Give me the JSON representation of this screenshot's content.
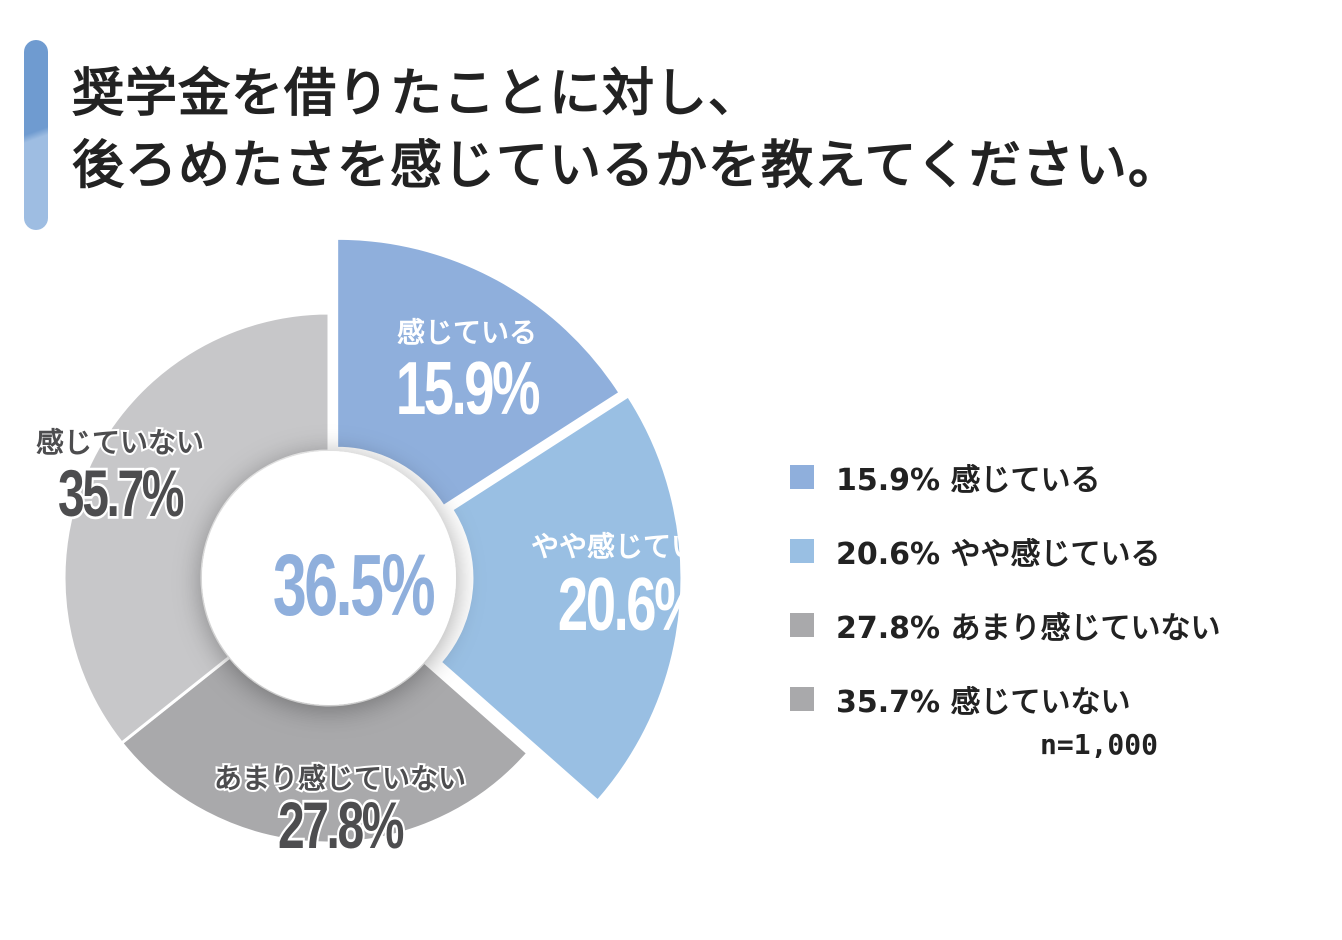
{
  "title": {
    "line1": "奨学金を借りたことに対し、",
    "line2": "後ろめたさを感じているかを教えてください。"
  },
  "accent_colors": {
    "bar_top": "#6f9bd0",
    "bar_bottom": "#9ebde2"
  },
  "chart_data": {
    "type": "pie",
    "variant": "donut",
    "center_label": "36.5%",
    "slices": [
      {
        "name": "感じている",
        "value": 15.9,
        "label": "15.9%",
        "color": "#8fafdc",
        "text_color": "#ffffff",
        "exploded": true
      },
      {
        "name": "やや感じている",
        "value": 20.6,
        "label": "20.6%",
        "color": "#99bfe3",
        "text_color": "#ffffff",
        "exploded": true
      },
      {
        "name": "あまり感じていない",
        "value": 27.8,
        "label": "27.8%",
        "color": "#a9a9ab",
        "text_color": "#4d4d4f",
        "exploded": false
      },
      {
        "name": "感じていない",
        "value": 35.7,
        "label": "35.7%",
        "color": "#c7c7c9",
        "text_color": "#4d4d4f",
        "exploded": false
      }
    ],
    "legend": [
      {
        "text": "15.9% 感じている",
        "color": "#8fafdc"
      },
      {
        "text": "20.6% やや感じている",
        "color": "#99bfe3"
      },
      {
        "text": "27.8% あまり感じていない",
        "color": "#a9a9ab"
      },
      {
        "text": "35.7% 感じていない",
        "color": "#a9a9ab"
      }
    ],
    "legend_position": "right",
    "sample_size": "n=1,000"
  }
}
